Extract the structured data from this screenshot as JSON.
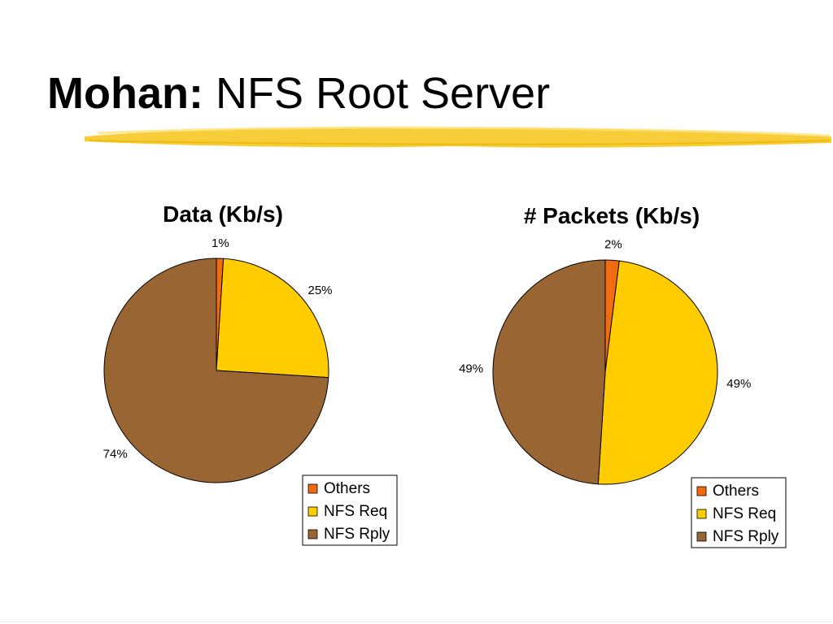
{
  "slide": {
    "title_bold": "Mohan:",
    "title_rest": " NFS Root Server",
    "accent_color": "#f5c518"
  },
  "chart_data": [
    {
      "type": "pie",
      "title": "Data (Kb/s)",
      "categories": [
        "Others",
        "NFS Req",
        "NFS Rply"
      ],
      "values": [
        1,
        25,
        74
      ],
      "labels": [
        "1%",
        "25%",
        "74%"
      ],
      "colors": [
        "#f26b0f",
        "#ffcc00",
        "#996633"
      ],
      "legend": "bottom-right"
    },
    {
      "type": "pie",
      "title": "# Packets (Kb/s)",
      "categories": [
        "Others",
        "NFS Req",
        "NFS Rply"
      ],
      "values": [
        2,
        49,
        49
      ],
      "labels": [
        "2%",
        "49%",
        "49%"
      ],
      "colors": [
        "#f26b0f",
        "#ffcc00",
        "#996633"
      ],
      "legend": "bottom-right"
    }
  ]
}
